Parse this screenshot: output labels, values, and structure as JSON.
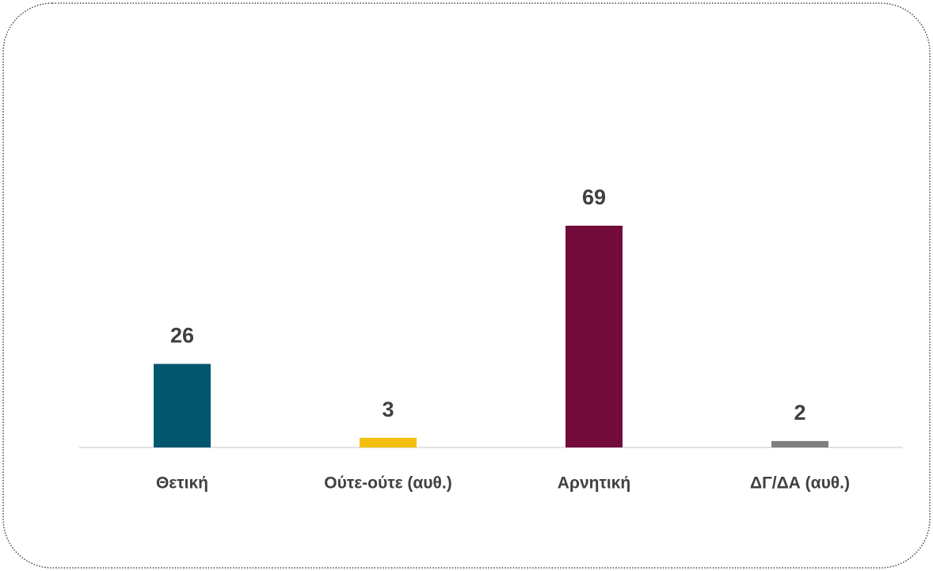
{
  "chart_data": {
    "type": "bar",
    "categories": [
      "Θετική",
      "Ούτε-ούτε (αυθ.)",
      "Αρνητική",
      "ΔΓ/ΔΑ (αυθ.)"
    ],
    "values": [
      26,
      3,
      69,
      2
    ],
    "colors": [
      "#02566e",
      "#f2bf0e",
      "#730c3b",
      "#7f7f7f"
    ]
  }
}
